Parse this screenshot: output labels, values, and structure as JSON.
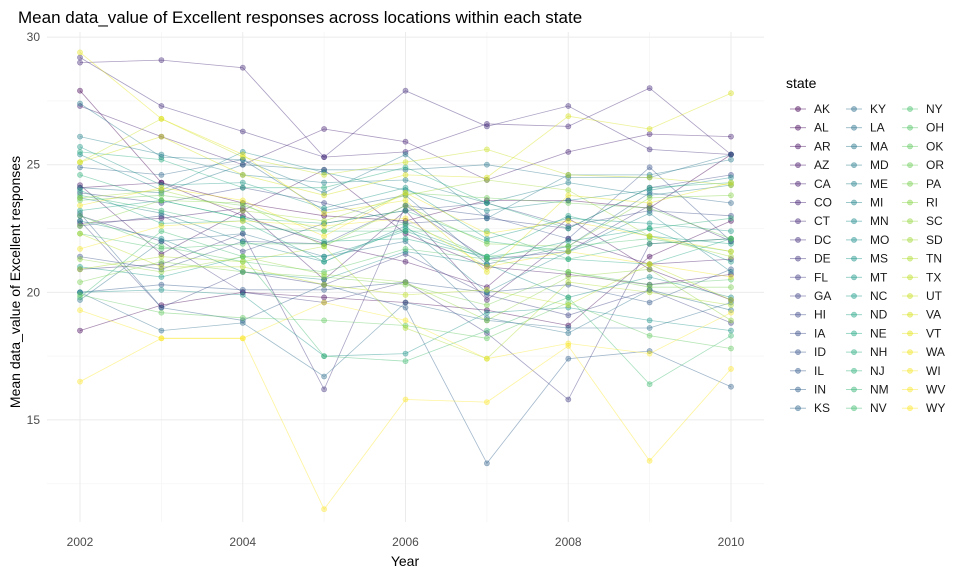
{
  "chart_data": {
    "type": "line",
    "title": "Mean data_value of Excellent responses across locations within each state",
    "xlabel": "Year",
    "ylabel": "Mean data_value of Excellent responses",
    "xlim": [
      2002,
      2010
    ],
    "ylim": [
      11.0,
      30.2
    ],
    "x_ticks": [
      2002,
      2004,
      2006,
      2008,
      2010
    ],
    "y_ticks": [
      15,
      20,
      25,
      30
    ],
    "grid": true,
    "legend_title": "state",
    "legend_position": "right",
    "x": [
      2002,
      2003,
      2004,
      2005,
      2006,
      2007,
      2008,
      2009,
      2010
    ],
    "series": [
      {
        "name": "AK",
        "color": "#440154",
        "values": [
          27.9,
          24.3,
          23.5,
          23.0,
          22.8,
          23.6,
          23.6,
          23.3,
          25.4
        ]
      },
      {
        "name": "AL",
        "color": "#46085c",
        "values": [
          18.5,
          19.5,
          20.0,
          19.8,
          19.6,
          19.3,
          18.7,
          21.4,
          22.8
        ]
      },
      {
        "name": "AR",
        "color": "#471063",
        "values": [
          24.1,
          24.3,
          23.0,
          21.9,
          21.2,
          20.2,
          22.9,
          20.9,
          19.7
        ]
      },
      {
        "name": "AZ",
        "color": "#481769",
        "values": [
          24.2,
          21.5,
          23.2,
          24.8,
          22.3,
          21.0,
          20.7,
          20.3,
          20.7
        ]
      },
      {
        "name": "CA",
        "color": "#481d6f",
        "values": [
          22.7,
          22.9,
          23.3,
          20.5,
          23.2,
          19.7,
          22.1,
          21.1,
          21.3
        ]
      },
      {
        "name": "CO",
        "color": "#482475",
        "values": [
          27.3,
          26.1,
          25.0,
          26.4,
          25.9,
          24.4,
          25.5,
          26.2,
          26.1
        ]
      },
      {
        "name": "CT",
        "color": "#472a7a",
        "values": [
          29.0,
          29.1,
          28.8,
          25.3,
          25.5,
          26.6,
          26.5,
          28.0,
          25.4
        ]
      },
      {
        "name": "DC",
        "color": "#46307e",
        "values": [
          29.2,
          27.3,
          26.3,
          25.3,
          27.9,
          26.5,
          27.3,
          25.6,
          25.4
        ]
      },
      {
        "name": "DE",
        "color": "#453781",
        "values": [
          20.9,
          21.1,
          22.3,
          16.2,
          23.4,
          21.3,
          21.6,
          23.4,
          22.0
        ]
      },
      {
        "name": "FL",
        "color": "#433e85",
        "values": [
          23.0,
          22.0,
          20.0,
          19.6,
          20.4,
          18.4,
          15.8,
          21.9,
          22.1
        ]
      },
      {
        "name": "GA",
        "color": "#414487",
        "values": [
          22.8,
          19.4,
          20.8,
          20.3,
          21.5,
          19.9,
          19.1,
          20.1,
          18.8
        ]
      },
      {
        "name": "HI",
        "color": "#3e4989",
        "values": [
          23.9,
          23.5,
          24.1,
          23.5,
          22.7,
          22.9,
          22.5,
          24.1,
          24.6
        ]
      },
      {
        "name": "IA",
        "color": "#3c4f8a",
        "values": [
          22.6,
          23.0,
          21.6,
          22.7,
          23.2,
          23.5,
          22.6,
          23.2,
          23.0
        ]
      },
      {
        "name": "ID",
        "color": "#39558c",
        "values": [
          21.4,
          20.9,
          22.0,
          21.9,
          23.4,
          23.0,
          22.1,
          24.9,
          22.0
        ]
      },
      {
        "name": "IL",
        "color": "#365c8d",
        "values": [
          20.0,
          20.3,
          20.1,
          20.1,
          20.4,
          20.0,
          20.3,
          19.6,
          20.9
        ]
      },
      {
        "name": "IN",
        "color": "#33628d",
        "values": [
          23.1,
          19.4,
          18.9,
          20.3,
          19.4,
          13.3,
          17.4,
          17.7,
          16.3
        ]
      },
      {
        "name": "KS",
        "color": "#31688e",
        "values": [
          24.9,
          24.6,
          25.2,
          23.2,
          23.8,
          21.1,
          21.8,
          23.9,
          23.5
        ]
      },
      {
        "name": "KY",
        "color": "#2e6e8e",
        "values": [
          20.0,
          18.5,
          18.8,
          16.7,
          19.6,
          18.9,
          18.6,
          18.6,
          19.6
        ]
      },
      {
        "name": "LA",
        "color": "#2c738e",
        "values": [
          19.7,
          22.0,
          22.3,
          21.4,
          22.0,
          19.0,
          18.4,
          20.1,
          19.3
        ]
      },
      {
        "name": "MA",
        "color": "#2a788e",
        "values": [
          24.1,
          23.9,
          25.0,
          24.8,
          24.8,
          25.0,
          24.5,
          24.5,
          25.4
        ]
      },
      {
        "name": "MD",
        "color": "#287d8e",
        "values": [
          27.4,
          25.3,
          25.2,
          23.9,
          25.4,
          22.9,
          24.6,
          24.6,
          25.2
        ]
      },
      {
        "name": "ME",
        "color": "#26828e",
        "values": [
          26.1,
          25.4,
          24.6,
          24.3,
          24.4,
          23.5,
          24.3,
          23.8,
          24.2
        ]
      },
      {
        "name": "MI",
        "color": "#24868e",
        "values": [
          23.7,
          23.1,
          22.0,
          21.2,
          22.6,
          20.0,
          21.6,
          23.1,
          20.8
        ]
      },
      {
        "name": "MN",
        "color": "#228b8d",
        "values": [
          25.4,
          24.0,
          25.5,
          24.7,
          24.0,
          23.2,
          23.6,
          24.0,
          24.5
        ]
      },
      {
        "name": "MO",
        "color": "#20908d",
        "values": [
          22.8,
          22.1,
          20.8,
          20.5,
          21.6,
          21.1,
          19.8,
          20.6,
          19.8
        ]
      },
      {
        "name": "MS",
        "color": "#1f958b",
        "values": [
          20.0,
          20.1,
          19.9,
          17.5,
          17.6,
          19.2,
          19.4,
          18.9,
          18.5
        ]
      },
      {
        "name": "MT",
        "color": "#1e9a8a",
        "values": [
          25.7,
          24.2,
          24.3,
          23.3,
          24.1,
          22.1,
          22.9,
          22.7,
          22.4
        ]
      },
      {
        "name": "NC",
        "color": "#1f9e89",
        "values": [
          21.0,
          20.6,
          21.4,
          21.4,
          22.4,
          21.3,
          22.0,
          22.5,
          21.2
        ]
      },
      {
        "name": "ND",
        "color": "#21a386",
        "values": [
          23.2,
          23.6,
          22.9,
          22.0,
          22.1,
          21.4,
          23.0,
          22.2,
          21.9
        ]
      },
      {
        "name": "NE",
        "color": "#24a884",
        "values": [
          24.0,
          22.7,
          22.8,
          21.2,
          22.5,
          21.4,
          21.3,
          21.1,
          22.1
        ]
      },
      {
        "name": "NH",
        "color": "#29ac81",
        "values": [
          25.5,
          25.2,
          24.1,
          24.1,
          24.9,
          23.5,
          22.5,
          24.1,
          24.3
        ]
      },
      {
        "name": "NJ",
        "color": "#2fb17d",
        "values": [
          24.6,
          23.6,
          22.9,
          22.7,
          23.2,
          22.0,
          21.6,
          22.5,
          22.9
        ]
      },
      {
        "name": "NM",
        "color": "#37b578",
        "values": [
          23.8,
          23.2,
          22.5,
          22.4,
          22.4,
          22.4,
          21.3,
          21.9,
          22.1
        ]
      },
      {
        "name": "NV",
        "color": "#40bc72",
        "values": [
          19.8,
          22.4,
          21.4,
          17.5,
          17.3,
          18.5,
          19.8,
          16.4,
          18.3
        ]
      },
      {
        "name": "NY",
        "color": "#4ac16d",
        "values": [
          22.3,
          21.7,
          21.9,
          21.9,
          22.7,
          21.4,
          21.8,
          22.1,
          21.6
        ]
      },
      {
        "name": "OH",
        "color": "#55c567",
        "values": [
          23.0,
          21.8,
          21.2,
          20.8,
          21.7,
          21.3,
          20.8,
          20.3,
          20.5
        ]
      },
      {
        "name": "OK",
        "color": "#61ca60",
        "values": [
          19.9,
          19.2,
          19.0,
          18.9,
          18.7,
          18.2,
          19.6,
          18.3,
          17.8
        ]
      },
      {
        "name": "OR",
        "color": "#6dcd59",
        "values": [
          23.6,
          23.8,
          23.4,
          22.4,
          23.9,
          23.7,
          23.5,
          23.3,
          22.1
        ]
      },
      {
        "name": "PA",
        "color": "#7ad151",
        "values": [
          20.4,
          21.2,
          20.8,
          20.6,
          20.3,
          19.5,
          20.8,
          20.2,
          20.2
        ]
      },
      {
        "name": "RI",
        "color": "#88d548",
        "values": [
          22.6,
          23.6,
          23.5,
          21.8,
          23.4,
          21.9,
          21.8,
          23.7,
          23.8
        ]
      },
      {
        "name": "SC",
        "color": "#95d840",
        "values": [
          21.3,
          20.8,
          21.4,
          20.7,
          20.4,
          18.9,
          20.6,
          20.9,
          18.9
        ]
      },
      {
        "name": "SD",
        "color": "#a2da37",
        "values": [
          23.7,
          24.0,
          23.2,
          22.8,
          23.8,
          24.4,
          24.0,
          22.2,
          21.4
        ]
      },
      {
        "name": "TN",
        "color": "#b0dd2f",
        "values": [
          20.9,
          21.4,
          21.2,
          21.8,
          18.6,
          17.4,
          20.4,
          20.0,
          19.5
        ]
      },
      {
        "name": "TX",
        "color": "#bddf26",
        "values": [
          22.3,
          21.0,
          21.0,
          20.3,
          19.9,
          20.1,
          19.5,
          21.1,
          19.7
        ]
      },
      {
        "name": "UT",
        "color": "#cae11f",
        "values": [
          25.1,
          26.8,
          25.3,
          24.6,
          25.1,
          25.6,
          24.6,
          24.5,
          24.2
        ]
      },
      {
        "name": "VA",
        "color": "#d8e219",
        "values": [
          25.1,
          26.1,
          24.6,
          23.8,
          24.6,
          24.5,
          26.9,
          26.4,
          27.8
        ]
      },
      {
        "name": "VT",
        "color": "#e5e419",
        "values": [
          29.4,
          26.8,
          25.4,
          23.1,
          23.6,
          20.8,
          23.8,
          23.5,
          24.3
        ]
      },
      {
        "name": "WA",
        "color": "#f1e51d",
        "values": [
          23.4,
          24.1,
          23.6,
          22.2,
          23.9,
          22.3,
          22.8,
          22.2,
          21.6
        ]
      },
      {
        "name": "WI",
        "color": "#f5e626",
        "values": [
          21.7,
          22.6,
          22.8,
          22.6,
          22.9,
          21.0,
          21.6,
          21.1,
          20.6
        ]
      },
      {
        "name": "WV",
        "color": "#f9e82e",
        "values": [
          19.3,
          18.2,
          18.2,
          19.6,
          18.9,
          17.4,
          18.0,
          17.6,
          19.2
        ]
      },
      {
        "name": "WY",
        "color": "#fde725",
        "values": [
          16.5,
          18.2,
          18.2,
          11.5,
          15.8,
          15.7,
          17.9,
          13.4,
          17.0
        ]
      }
    ]
  }
}
